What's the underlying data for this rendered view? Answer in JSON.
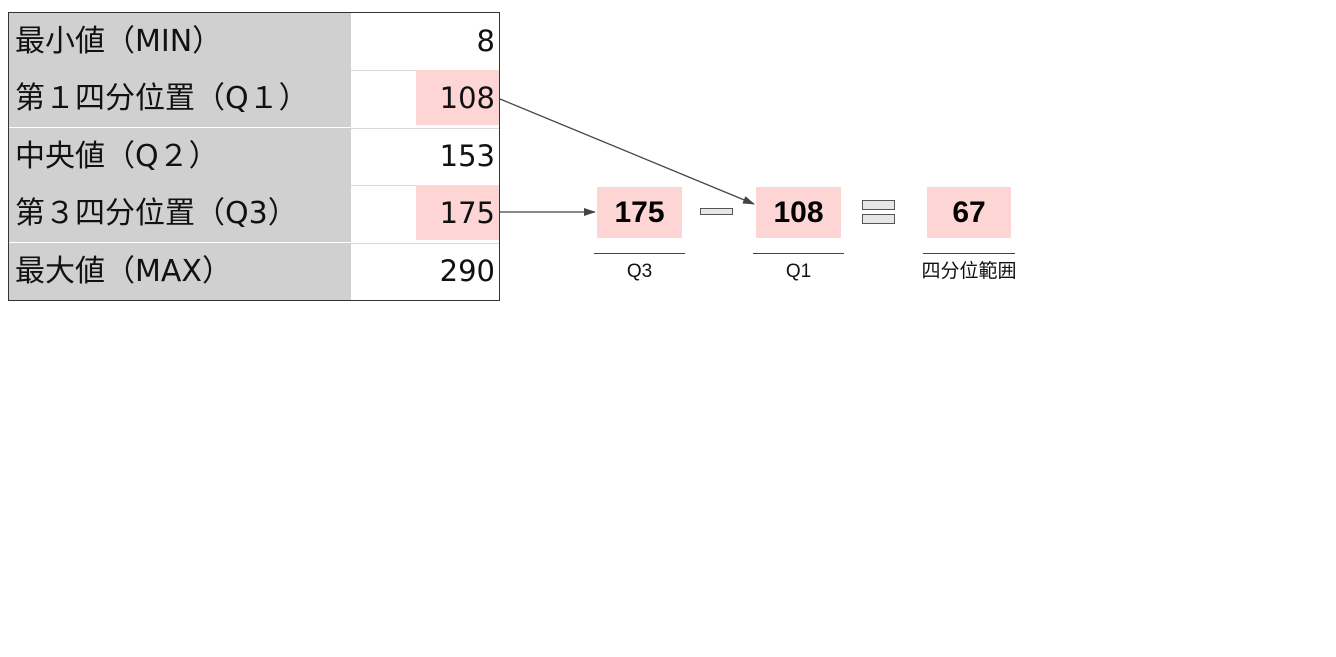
{
  "table": {
    "rows": [
      {
        "label": "最小値（MIN）",
        "value": "8",
        "highlighted": false
      },
      {
        "label": "第１四分位置（Q１）",
        "value": "108",
        "highlighted": true
      },
      {
        "label": "中央値（Q２）",
        "value": "153",
        "highlighted": false
      },
      {
        "label": "第３四分位置（Q3）",
        "value": "175",
        "highlighted": true
      },
      {
        "label": "最大値（MAX）",
        "value": "290",
        "highlighted": false
      }
    ]
  },
  "formula": {
    "q3_value": "175",
    "q3_caption": "Q3",
    "q1_value": "108",
    "q1_caption": "Q1",
    "result_value": "67",
    "result_caption": "四分位範囲",
    "minus_icon": "minus-sign",
    "equals_icon": "equals-sign"
  },
  "colors": {
    "highlight": "#fdd5d5",
    "label_background": "#d0d0d0",
    "arrow": "#444444"
  }
}
